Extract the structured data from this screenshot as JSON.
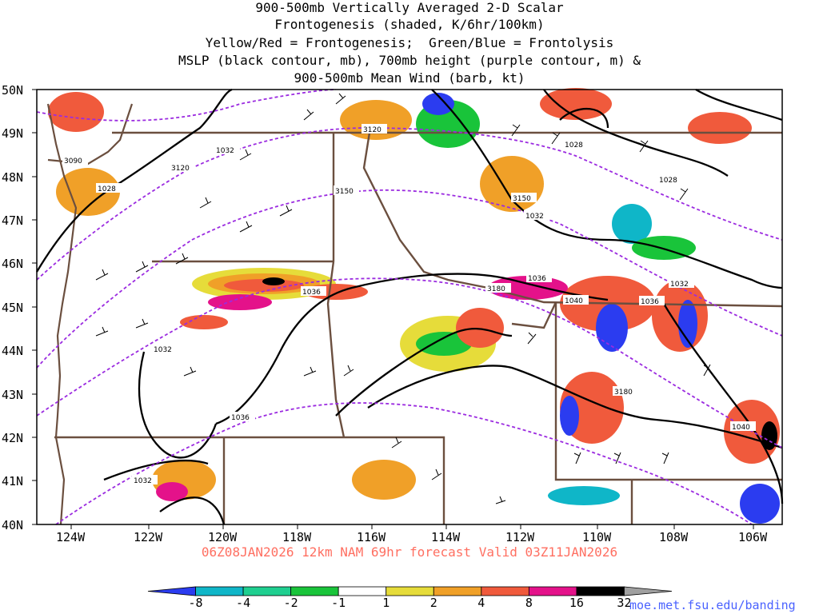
{
  "title": {
    "lines": [
      "900-500mb Vertically Averaged 2-D Scalar",
      "Frontogenesis (shaded, K/6hr/100km)",
      "Yellow/Red = Frontogenesis;  Green/Blue = Frontolysis",
      "MSLP (black contour, mb), 700mb height (purple contour, m) &",
      "900-500mb Mean Wind (barb, kt)"
    ]
  },
  "run_info": "06Z08JAN2026 12km NAM 69hr forecast Valid 03Z11JAN2026",
  "credit": "moe.met.fsu.edu/banding",
  "axes": {
    "lat_labels": [
      "50N",
      "49N",
      "48N",
      "47N",
      "46N",
      "45N",
      "44N",
      "43N",
      "42N",
      "41N",
      "40N"
    ],
    "lon_labels": [
      "124W",
      "122W",
      "120W",
      "118W",
      "116W",
      "114W",
      "112W",
      "110W",
      "108W",
      "106W"
    ]
  },
  "colorbar": {
    "labels": [
      "-8",
      "-4",
      "-2",
      "-1",
      "1",
      "2",
      "4",
      "8",
      "16",
      "32"
    ],
    "colors": [
      "#2b3cf0",
      "#0fb6c8",
      "#1fcf90",
      "#19c43a",
      "#ffffff",
      "#e6dc3a",
      "#f0a028",
      "#f05a3c",
      "#e4128a",
      "#000000",
      "#a0a0a0"
    ]
  },
  "contour_labels": {
    "mslp": [
      "1032",
      "1028",
      "1036",
      "1036",
      "1032",
      "1040",
      "1036",
      "1032",
      "1028",
      "1028",
      "1032",
      "1036",
      "1032",
      "1040"
    ],
    "height": [
      "3120",
      "3150",
      "3150",
      "3180",
      "3180",
      "3120",
      "3090"
    ]
  }
}
